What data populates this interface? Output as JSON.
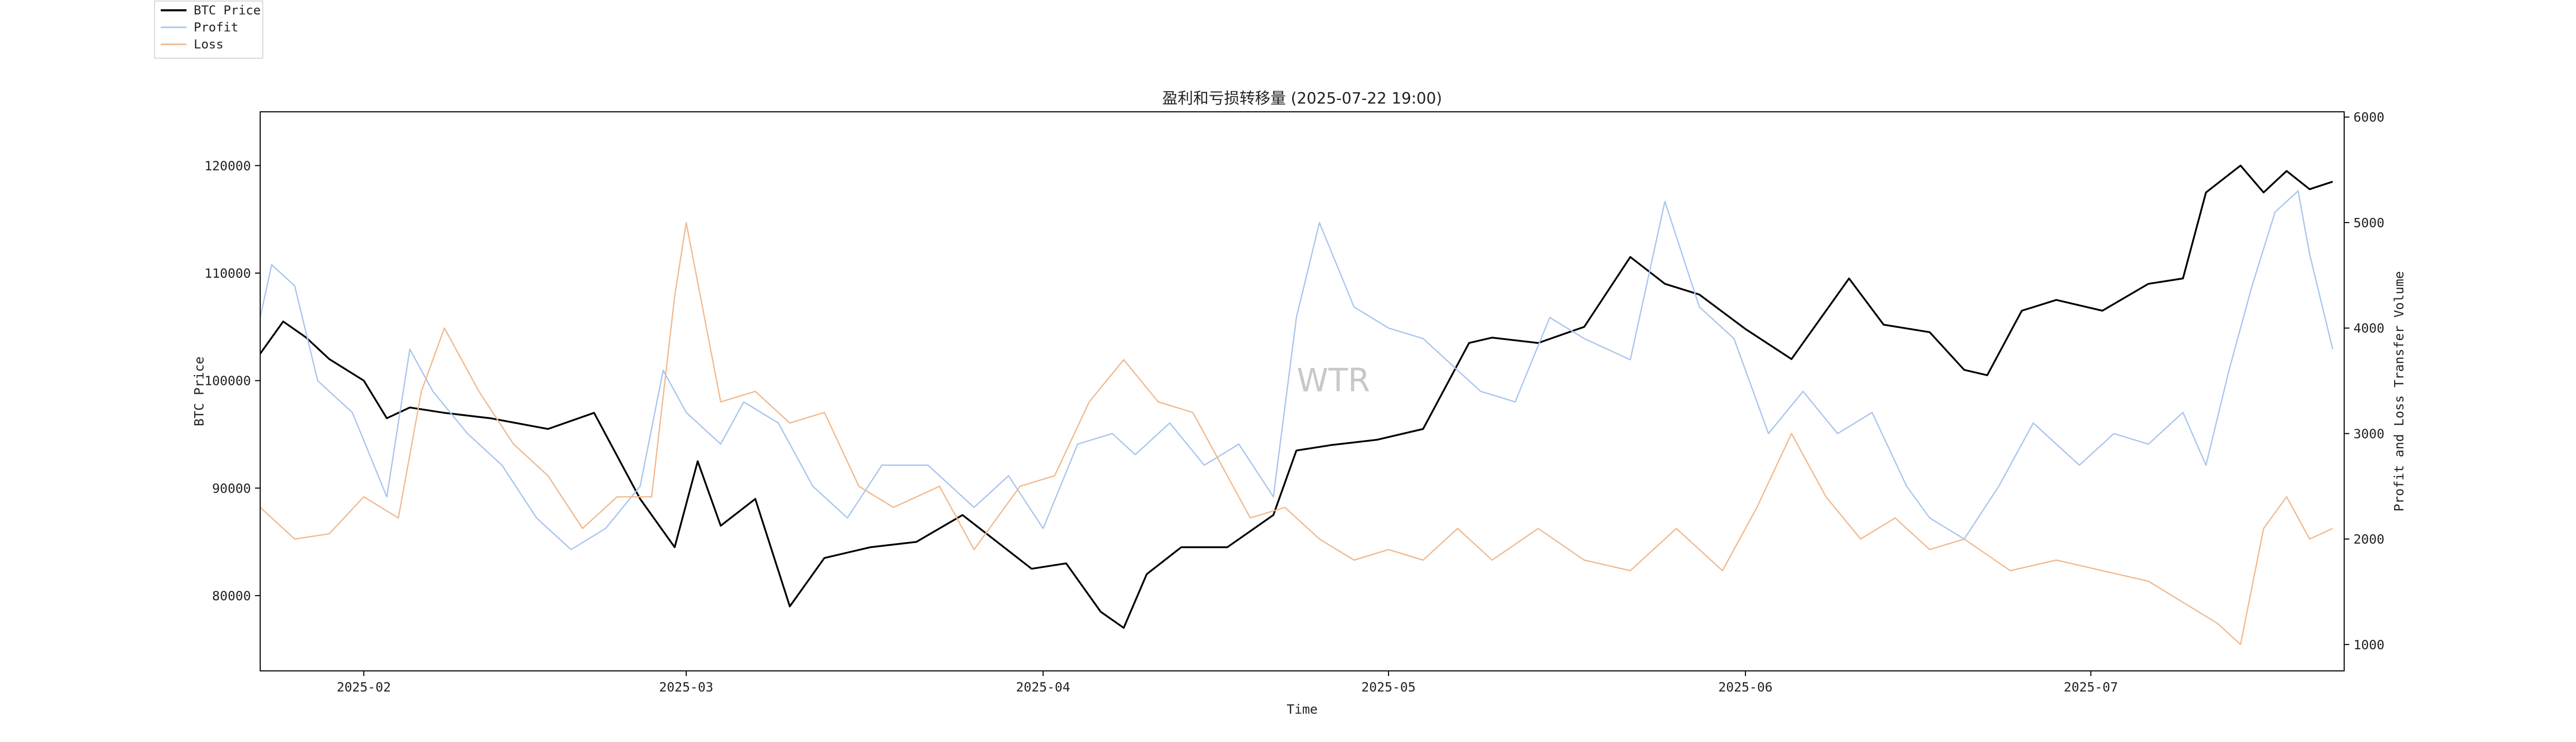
{
  "chart_data": {
    "type": "line",
    "title": "盈利和亏损转移量 (2025-07-22 19:00)",
    "xlabel": "Time",
    "ylabel_left": "BTC Price",
    "ylabel_right": "Profit and Loss Transfer Volume",
    "watermark": "WTR",
    "x_range": [
      "2025-01-23",
      "2025-07-23"
    ],
    "x_ticks": [
      "2025-02-01",
      "2025-03-01",
      "2025-04-01",
      "2025-05-01",
      "2025-06-01",
      "2025-07-01"
    ],
    "x_tick_labels": [
      "2025-02",
      "2025-03",
      "2025-04",
      "2025-05",
      "2025-06",
      "2025-07"
    ],
    "ylim_left": [
      73000,
      125000
    ],
    "yticks_left": [
      80000,
      90000,
      100000,
      110000,
      120000
    ],
    "ylim_right": [
      750,
      6050
    ],
    "yticks_right": [
      1000,
      2000,
      3000,
      4000,
      5000,
      6000
    ],
    "legend": {
      "placement": "top-left-outside",
      "entries": [
        "BTC Price",
        "Profit",
        "Loss"
      ]
    },
    "grid": false,
    "series": [
      {
        "name": "BTC Price",
        "axis": "left",
        "color": "#000000",
        "x": [
          "2025-01-23",
          "2025-01-25",
          "2025-01-27",
          "2025-01-29",
          "2025-02-01",
          "2025-02-03",
          "2025-02-05",
          "2025-02-08",
          "2025-02-12",
          "2025-02-17",
          "2025-02-21",
          "2025-02-25",
          "2025-02-28",
          "2025-03-02",
          "2025-03-04",
          "2025-03-07",
          "2025-03-10",
          "2025-03-13",
          "2025-03-17",
          "2025-03-21",
          "2025-03-25",
          "2025-03-28",
          "2025-03-31",
          "2025-04-03",
          "2025-04-06",
          "2025-04-08",
          "2025-04-10",
          "2025-04-13",
          "2025-04-17",
          "2025-04-21",
          "2025-04-23",
          "2025-04-26",
          "2025-04-30",
          "2025-05-04",
          "2025-05-08",
          "2025-05-10",
          "2025-05-14",
          "2025-05-18",
          "2025-05-22",
          "2025-05-25",
          "2025-05-28",
          "2025-06-01",
          "2025-06-05",
          "2025-06-10",
          "2025-06-13",
          "2025-06-17",
          "2025-06-20",
          "2025-06-22",
          "2025-06-25",
          "2025-06-28",
          "2025-07-02",
          "2025-07-06",
          "2025-07-09",
          "2025-07-11",
          "2025-07-14",
          "2025-07-16",
          "2025-07-18",
          "2025-07-20",
          "2025-07-22"
        ],
        "values": [
          102500,
          105500,
          104000,
          102000,
          100000,
          96500,
          97500,
          97000,
          96500,
          95500,
          97000,
          89000,
          84500,
          92500,
          86500,
          89000,
          79000,
          83500,
          84500,
          85000,
          87500,
          85000,
          82500,
          83000,
          78500,
          77000,
          82000,
          84500,
          84500,
          87500,
          93500,
          94000,
          94500,
          95500,
          103500,
          104000,
          103500,
          105000,
          111500,
          109000,
          108000,
          104800,
          102000,
          109500,
          105200,
          104500,
          101000,
          100500,
          106500,
          107500,
          106500,
          109000,
          109500,
          117500,
          120000,
          117500,
          119500,
          117800,
          118500
        ]
      },
      {
        "name": "Profit",
        "axis": "right",
        "color": "#a9c5ee",
        "x": [
          "2025-01-23",
          "2025-01-24",
          "2025-01-26",
          "2025-01-28",
          "2025-01-31",
          "2025-02-03",
          "2025-02-05",
          "2025-02-07",
          "2025-02-10",
          "2025-02-13",
          "2025-02-16",
          "2025-02-19",
          "2025-02-22",
          "2025-02-25",
          "2025-02-27",
          "2025-03-01",
          "2025-03-04",
          "2025-03-06",
          "2025-03-09",
          "2025-03-12",
          "2025-03-15",
          "2025-03-18",
          "2025-03-22",
          "2025-03-26",
          "2025-03-29",
          "2025-04-01",
          "2025-04-04",
          "2025-04-07",
          "2025-04-09",
          "2025-04-12",
          "2025-04-15",
          "2025-04-18",
          "2025-04-21",
          "2025-04-23",
          "2025-04-25",
          "2025-04-28",
          "2025-05-01",
          "2025-05-04",
          "2025-05-07",
          "2025-05-09",
          "2025-05-12",
          "2025-05-15",
          "2025-05-18",
          "2025-05-22",
          "2025-05-25",
          "2025-05-28",
          "2025-05-31",
          "2025-06-03",
          "2025-06-06",
          "2025-06-09",
          "2025-06-12",
          "2025-06-15",
          "2025-06-17",
          "2025-06-20",
          "2025-06-23",
          "2025-06-26",
          "2025-06-30",
          "2025-07-03",
          "2025-07-06",
          "2025-07-09",
          "2025-07-11",
          "2025-07-13",
          "2025-07-15",
          "2025-07-17",
          "2025-07-19",
          "2025-07-20",
          "2025-07-22"
        ],
        "values": [
          4100,
          4600,
          4400,
          3500,
          3200,
          2400,
          3800,
          3400,
          3000,
          2700,
          2200,
          1900,
          2100,
          2500,
          3600,
          3200,
          2900,
          3300,
          3100,
          2500,
          2200,
          2700,
          2700,
          2300,
          2600,
          2100,
          2900,
          3000,
          2800,
          3100,
          2700,
          2900,
          2400,
          4100,
          5000,
          4200,
          4000,
          3900,
          3600,
          3400,
          3300,
          4100,
          3900,
          3700,
          5200,
          4200,
          3900,
          3000,
          3400,
          3000,
          3200,
          2500,
          2200,
          2000,
          2500,
          3100,
          2700,
          3000,
          2900,
          3200,
          2700,
          3600,
          4400,
          5100,
          5300,
          4700,
          3800
        ]
      },
      {
        "name": "Loss",
        "axis": "right",
        "color": "#f1b98d",
        "x": [
          "2025-01-23",
          "2025-01-26",
          "2025-01-29",
          "2025-02-01",
          "2025-02-04",
          "2025-02-06",
          "2025-02-08",
          "2025-02-11",
          "2025-02-14",
          "2025-02-17",
          "2025-02-20",
          "2025-02-23",
          "2025-02-26",
          "2025-02-28",
          "2025-03-01",
          "2025-03-04",
          "2025-03-07",
          "2025-03-10",
          "2025-03-13",
          "2025-03-16",
          "2025-03-19",
          "2025-03-23",
          "2025-03-26",
          "2025-03-30",
          "2025-04-02",
          "2025-04-05",
          "2025-04-08",
          "2025-04-11",
          "2025-04-14",
          "2025-04-17",
          "2025-04-19",
          "2025-04-22",
          "2025-04-25",
          "2025-04-28",
          "2025-05-01",
          "2025-05-04",
          "2025-05-07",
          "2025-05-10",
          "2025-05-14",
          "2025-05-18",
          "2025-05-22",
          "2025-05-26",
          "2025-05-30",
          "2025-06-02",
          "2025-06-05",
          "2025-06-08",
          "2025-06-11",
          "2025-06-14",
          "2025-06-17",
          "2025-06-20",
          "2025-06-24",
          "2025-06-28",
          "2025-07-02",
          "2025-07-06",
          "2025-07-09",
          "2025-07-12",
          "2025-07-14",
          "2025-07-16",
          "2025-07-18",
          "2025-07-20",
          "2025-07-22"
        ],
        "values": [
          2300,
          2000,
          2050,
          2400,
          2200,
          3400,
          4000,
          3400,
          2900,
          2600,
          2100,
          2400,
          2400,
          4300,
          5000,
          3300,
          3400,
          3100,
          3200,
          2500,
          2300,
          2500,
          1900,
          2500,
          2600,
          3300,
          3700,
          3300,
          3200,
          2600,
          2200,
          2300,
          2000,
          1800,
          1900,
          1800,
          2100,
          1800,
          2100,
          1800,
          1700,
          2100,
          1700,
          2300,
          3000,
          2400,
          2000,
          2200,
          1900,
          2000,
          1700,
          1800,
          1700,
          1600,
          1400,
          1200,
          1000,
          2100,
          2400,
          2000,
          2100
        ]
      }
    ]
  }
}
